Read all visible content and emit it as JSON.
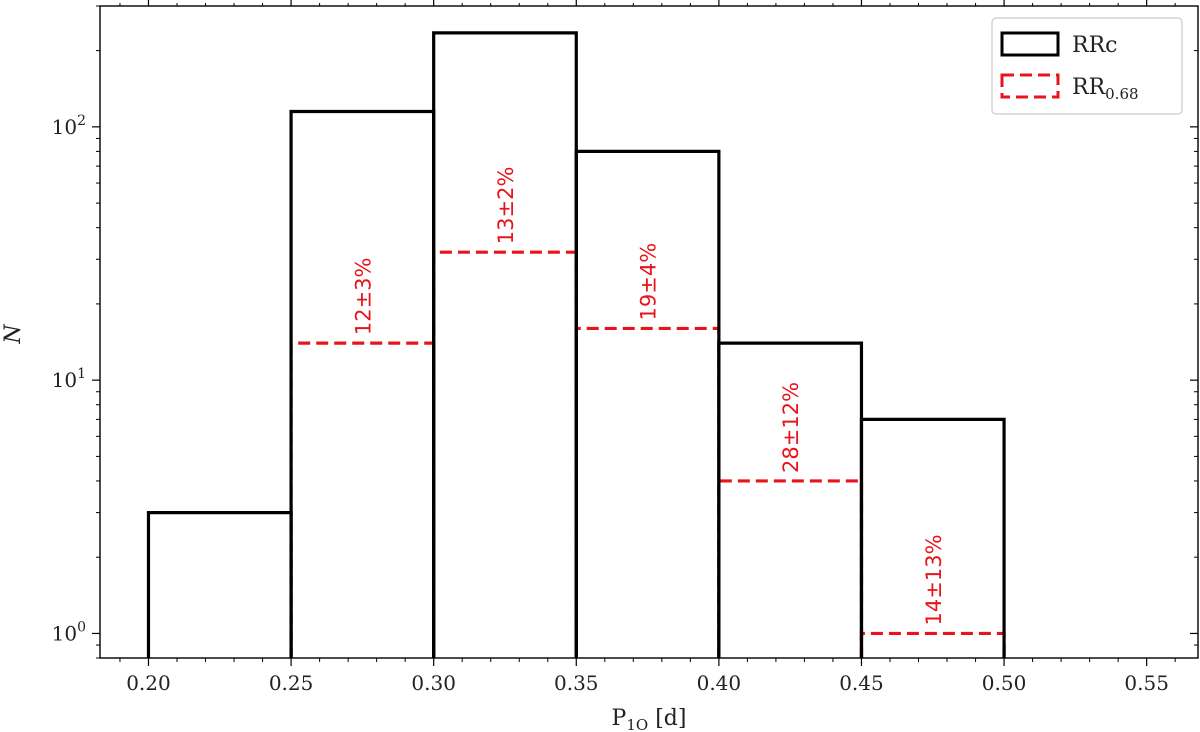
{
  "chart_data": {
    "type": "histogram",
    "xlabel": "P",
    "xlabel_sub": "1O",
    "xlabel_unit": "[d]",
    "ylabel": "N",
    "xlim": [
      0.183,
      0.568
    ],
    "ylim": [
      0.8,
      300
    ],
    "yscale": "log",
    "x_ticks": [
      0.2,
      0.25,
      0.3,
      0.35,
      0.4,
      0.45,
      0.5,
      0.55
    ],
    "x_tick_labels": [
      "0.20",
      "0.25",
      "0.30",
      "0.35",
      "0.40",
      "0.45",
      "0.50",
      "0.55"
    ],
    "y_ticks": [
      {
        "value": 1,
        "base": "10",
        "exp": "0"
      },
      {
        "value": 10,
        "base": "10",
        "exp": "1"
      },
      {
        "value": 100,
        "base": "10",
        "exp": "2"
      }
    ],
    "bin_edges": [
      0.2,
      0.25,
      0.3,
      0.35,
      0.4,
      0.45,
      0.5
    ],
    "series": [
      {
        "name": "RRc",
        "name_sub": "",
        "style": "solid",
        "color": "#000000",
        "counts": [
          3,
          115,
          235,
          80,
          14,
          7
        ]
      },
      {
        "name": "RR",
        "name_sub": "0.68",
        "style": "dashed",
        "color": "#e8141b",
        "counts": [
          0,
          14,
          32,
          16,
          4,
          1
        ]
      }
    ],
    "annotations": [
      {
        "text": "12±3%",
        "x": 0.275,
        "y": 14
      },
      {
        "text": "13±2%",
        "x": 0.325,
        "y": 32
      },
      {
        "text": "19±4%",
        "x": 0.375,
        "y": 16
      },
      {
        "text": "28±12%",
        "x": 0.425,
        "y": 4
      },
      {
        "text": "14±13%",
        "x": 0.475,
        "y": 1
      }
    ],
    "legend_position": "top-right",
    "grid": false
  }
}
